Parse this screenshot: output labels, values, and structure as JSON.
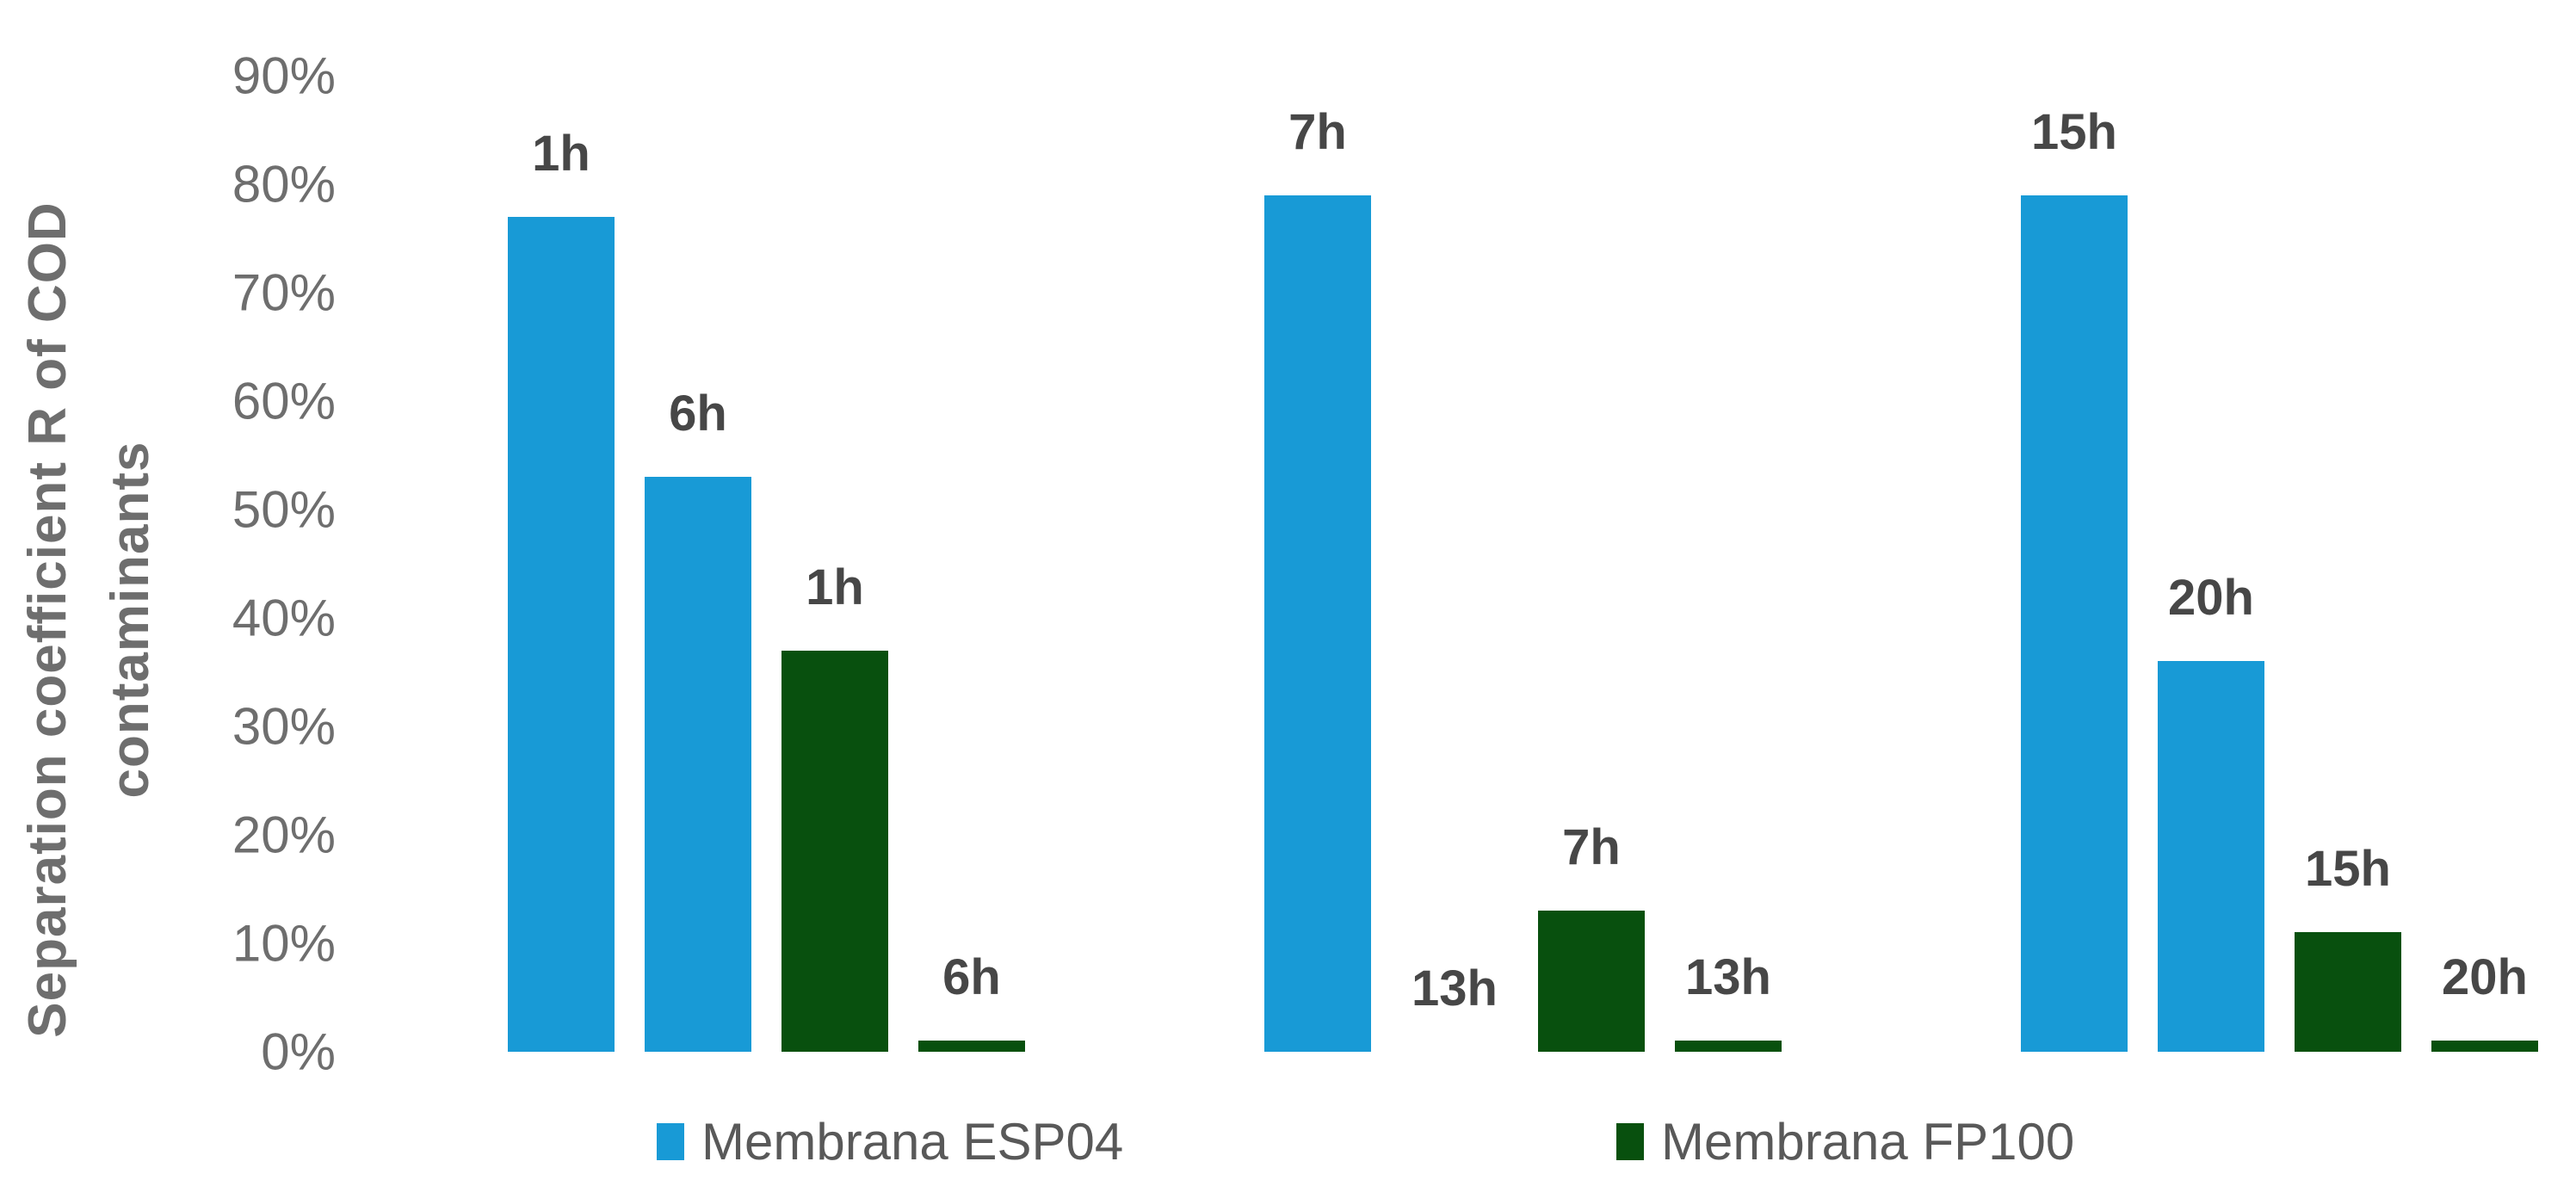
{
  "chart_data": {
    "type": "bar",
    "title": "",
    "xlabel": "",
    "ylabel": "Separation coefficient R of COD contaminants",
    "ylabel_lines": [
      "Separation coefficient R of COD",
      "contaminants"
    ],
    "ylim": [
      0,
      90
    ],
    "value_unit": "%",
    "grid": false,
    "legend_position": "bottom",
    "yticks": [
      {
        "label": "90%",
        "value": 90
      },
      {
        "label": "80%",
        "value": 80
      },
      {
        "label": "70%",
        "value": 70
      },
      {
        "label": "60%",
        "value": 60
      },
      {
        "label": "50%",
        "value": 50
      },
      {
        "label": "40%",
        "value": 40
      },
      {
        "label": "30%",
        "value": 30
      },
      {
        "label": "20%",
        "value": 20
      },
      {
        "label": "10%",
        "value": 10
      },
      {
        "label": "0%",
        "value": 0
      }
    ],
    "series": [
      {
        "name": "Membrana ESP04",
        "color": "#189AD6"
      },
      {
        "name": "Membrana FP100",
        "color": "#08500E"
      }
    ],
    "groups": [
      {
        "bars": [
          {
            "label": "1h",
            "series": 0,
            "value": 77
          },
          {
            "label": "6h",
            "series": 0,
            "value": 53
          },
          {
            "label": "1h",
            "series": 1,
            "value": 37
          },
          {
            "label": "6h",
            "series": 1,
            "value": 1
          }
        ]
      },
      {
        "bars": [
          {
            "label": "7h",
            "series": 0,
            "value": 79
          },
          {
            "label": "13h",
            "series": 0,
            "value": 0
          },
          {
            "label": "7h",
            "series": 1,
            "value": 13
          },
          {
            "label": "13h",
            "series": 1,
            "value": 1
          }
        ]
      },
      {
        "bars": [
          {
            "label": "15h",
            "series": 0,
            "value": 79
          },
          {
            "label": "20h",
            "series": 0,
            "value": 36
          },
          {
            "label": "15h",
            "series": 1,
            "value": 11
          },
          {
            "label": "20h",
            "series": 1,
            "value": 1
          }
        ]
      }
    ],
    "legend": [
      {
        "label": "Membrana ESP04",
        "color": "#189AD6"
      },
      {
        "label": "Membrana FP100",
        "color": "#08500E"
      }
    ]
  },
  "colors": {
    "background": "#FFFFFF",
    "tick_text": "#6E6E6E",
    "axis_title_text": "#6E6E6E",
    "bar_label_text": "#474747",
    "legend_text": "#595959",
    "series_blue": "#189AD6",
    "series_green": "#08500E"
  }
}
